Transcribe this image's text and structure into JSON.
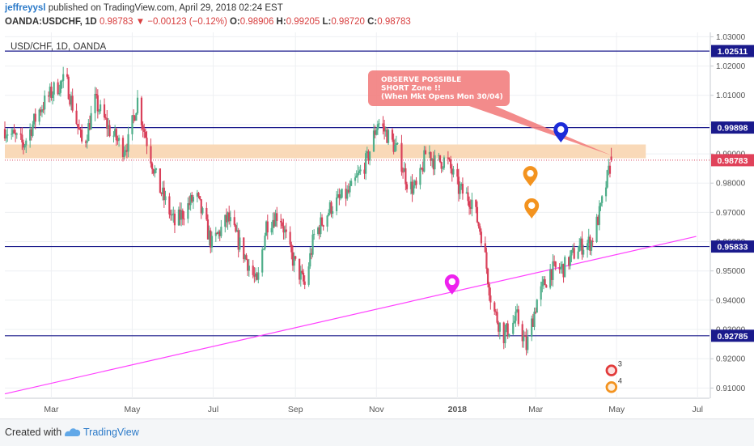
{
  "header": {
    "user": "jeffreyysl",
    "published_text": "published on TradingView.com, April 29, 2018 02:24 EST",
    "symbol": "OANDA:USDCHF, 1D",
    "last": "0.98783",
    "change": "−0.00123 (−0.12%)",
    "o_label": "O:",
    "o": "0.98906",
    "h_label": "H:",
    "h": "0.99205",
    "l_label": "L:",
    "l": "0.98720",
    "c_label": "C:",
    "c": "0.98783"
  },
  "footer": {
    "created_with": "Created with",
    "brand": "TradingView"
  },
  "colors": {
    "up": "#4fae8a",
    "down": "#d9405a",
    "hline": "#1a1a8c",
    "trend": "#ff40ff",
    "zone": "#f9d9b8",
    "callout": "#f27e7e"
  },
  "chart_data": {
    "type": "candlestick",
    "title": "USD/CHF, 1D, OANDA",
    "ylim": [
      0.9065,
      1.0315
    ],
    "y_ticks": [
      0.91,
      0.92,
      0.93,
      0.94,
      0.95,
      0.96,
      0.97,
      0.98,
      0.99,
      1.0,
      1.01,
      1.02,
      1.03
    ],
    "y_tick_labels": [
      "0.91000",
      "0.92000",
      "0.93000",
      "0.94000",
      "0.95000",
      "0.96000",
      "0.97000",
      "0.98000",
      "0.99000",
      "1.00000",
      "1.01000",
      "1.02000",
      "1.03000"
    ],
    "x_ticks": [
      "2017-03-01",
      "2017-05-01",
      "2017-07-01",
      "2017-09-01",
      "2017-11-01",
      "2018-01-01",
      "2018-03-01",
      "2018-05-01",
      "2018-07-01"
    ],
    "x_tick_labels": [
      "Mar",
      "May",
      "Jul",
      "Sep",
      "Nov",
      "2018",
      "Mar",
      "May",
      "Jul"
    ],
    "horizontal_levels": [
      {
        "value": 1.02511,
        "label": "1.02511"
      },
      {
        "value": 0.99898,
        "label": "0.99898"
      },
      {
        "value": 0.95833,
        "label": "0.95833"
      },
      {
        "value": 0.92785,
        "label": "0.92785"
      }
    ],
    "last_price": {
      "value": 0.98783,
      "label": "0.98783"
    },
    "zone": {
      "start": "2017-01-25",
      "end": "2018-05-23",
      "low": 0.9885,
      "high": 0.9932
    },
    "trendline": {
      "points": [
        [
          "2017-01-25",
          0.908
        ],
        [
          "2018-06-30",
          0.9618
        ]
      ]
    },
    "annotation": {
      "text": [
        "OBSERVE POSSIBLE",
        "SHORT Zone !!",
        "(When Mkt Opens Mon 30/04)"
      ],
      "pointer_to": [
        "2018-04-27",
        0.9895
      ]
    },
    "markers": [
      {
        "date": "2018-03-20",
        "value": 0.9975,
        "color": "blue"
      },
      {
        "date": "2018-02-25",
        "value": 0.9825,
        "color": "orange"
      },
      {
        "date": "2018-02-26",
        "value": 0.9715,
        "color": "orange"
      },
      {
        "date": "2017-12-28",
        "value": 0.9455,
        "color": "magenta"
      }
    ],
    "events": [
      {
        "date": "2018-05-02",
        "value": 0.916,
        "label": "3"
      },
      {
        "date": "2018-05-02",
        "value": 0.9103,
        "label": "4"
      }
    ],
    "path": [
      [
        "2017-01-25",
        0.9985
      ],
      [
        "2017-02-08",
        0.993
      ],
      [
        "2017-02-20",
        1.005
      ],
      [
        "2017-03-03",
        1.012
      ],
      [
        "2017-03-12",
        1.0155
      ],
      [
        "2017-03-25",
        0.992
      ],
      [
        "2017-04-03",
        1.008
      ],
      [
        "2017-04-14",
        0.998
      ],
      [
        "2017-04-24",
        0.992
      ],
      [
        "2017-04-28",
        0.994
      ],
      [
        "2017-05-05",
        1.0085
      ],
      [
        "2017-05-10",
        0.998
      ],
      [
        "2017-05-20",
        0.98
      ],
      [
        "2017-06-02",
        0.966
      ],
      [
        "2017-06-18",
        0.976
      ],
      [
        "2017-06-30",
        0.959
      ],
      [
        "2017-07-12",
        0.968
      ],
      [
        "2017-07-28",
        0.952
      ],
      [
        "2017-08-03",
        0.945
      ],
      [
        "2017-08-10",
        0.966
      ],
      [
        "2017-08-20",
        0.97
      ],
      [
        "2017-08-28",
        0.956
      ],
      [
        "2017-09-08",
        0.945
      ],
      [
        "2017-09-15",
        0.962
      ],
      [
        "2017-09-28",
        0.972
      ],
      [
        "2017-10-12",
        0.977
      ],
      [
        "2017-10-25",
        0.988
      ],
      [
        "2017-11-02",
        1.001
      ],
      [
        "2017-11-10",
        0.996
      ],
      [
        "2017-11-18",
        0.99
      ],
      [
        "2017-11-25",
        0.979
      ],
      [
        "2017-12-02",
        0.978
      ],
      [
        "2017-12-09",
        0.992
      ],
      [
        "2017-12-15",
        0.987
      ],
      [
        "2017-12-24",
        0.988
      ],
      [
        "2018-01-02",
        0.978
      ],
      [
        "2018-01-12",
        0.974
      ],
      [
        "2018-01-20",
        0.961
      ],
      [
        "2018-01-27",
        0.938
      ],
      [
        "2018-02-05",
        0.928
      ],
      [
        "2018-02-15",
        0.934
      ],
      [
        "2018-02-22",
        0.924
      ],
      [
        "2018-03-02",
        0.94
      ],
      [
        "2018-03-12",
        0.95
      ],
      [
        "2018-03-22",
        0.951
      ],
      [
        "2018-04-02",
        0.958
      ],
      [
        "2018-04-12",
        0.96
      ],
      [
        "2018-04-19",
        0.971
      ],
      [
        "2018-04-27",
        0.9878
      ]
    ]
  }
}
